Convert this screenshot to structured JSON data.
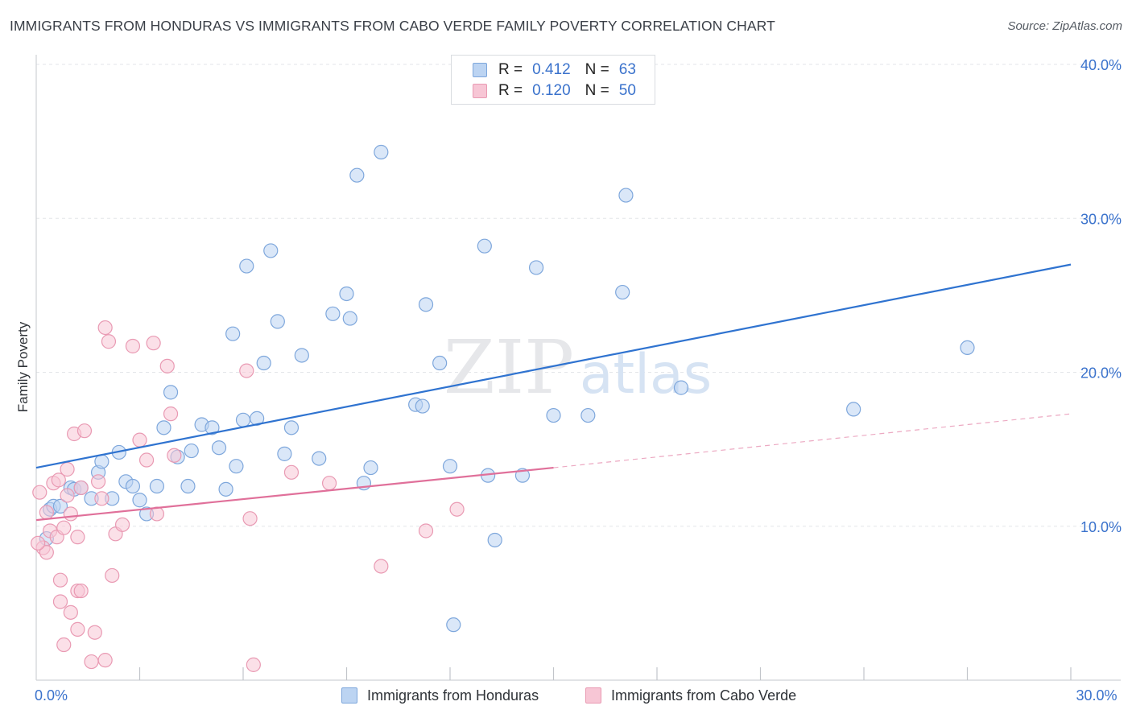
{
  "title": "IMMIGRANTS FROM HONDURAS VS IMMIGRANTS FROM CABO VERDE FAMILY POVERTY CORRELATION CHART",
  "source": "Source: ZipAtlas.com",
  "watermark": {
    "zip": "ZIP",
    "atlas": "atlas"
  },
  "colors": {
    "honduras_fill": "#bcd4f2",
    "honduras_stroke": "#7ea7dc",
    "honduras_line": "#2f73d0",
    "caboverde_fill": "#f7c6d5",
    "caboverde_stroke": "#e99ab3",
    "caboverde_line": "#e0709a",
    "tick_label": "#3a72cc",
    "grid": "#e3e5e8"
  },
  "legend": {
    "rows": [
      {
        "r_label": "R =",
        "r_value": "0.412",
        "n_label": "N =",
        "n_value": "63"
      },
      {
        "r_label": "R =",
        "r_value": "0.120",
        "n_label": "N =",
        "n_value": "50"
      }
    ]
  },
  "bottom_legend": {
    "series1": "Immigrants from Honduras",
    "series2": "Immigrants from Cabo Verde"
  },
  "chart_data": {
    "type": "scatter",
    "title": "IMMIGRANTS FROM HONDURAS VS IMMIGRANTS FROM CABO VERDE FAMILY POVERTY CORRELATION CHART",
    "xlabel": "",
    "ylabel": "Family Poverty",
    "xlim": [
      0,
      30
    ],
    "ylim": [
      0,
      40
    ],
    "x_tick_labels": [
      {
        "value": 0,
        "label": "0.0%"
      },
      {
        "value": 30,
        "label": "30.0%"
      }
    ],
    "x_minor_ticks": [
      3,
      6,
      9,
      12,
      15,
      18,
      21,
      24,
      27,
      30
    ],
    "y_ticks": [
      {
        "value": 10,
        "label": "10.0%"
      },
      {
        "value": 20,
        "label": "20.0%"
      },
      {
        "value": 30,
        "label": "30.0%"
      },
      {
        "value": 40,
        "label": "40.0%"
      }
    ],
    "grid": true,
    "series": [
      {
        "name": "Immigrants from Honduras",
        "r": 0.412,
        "n": 63,
        "trend": {
          "x": [
            0,
            30
          ],
          "y": [
            13.8,
            27.0
          ]
        },
        "points": [
          [
            0.3,
            9.2
          ],
          [
            0.4,
            11.1
          ],
          [
            0.5,
            11.3
          ],
          [
            0.7,
            11.3
          ],
          [
            1.0,
            12.5
          ],
          [
            1.1,
            12.4
          ],
          [
            1.3,
            12.5
          ],
          [
            1.6,
            11.8
          ],
          [
            1.8,
            13.5
          ],
          [
            1.9,
            14.2
          ],
          [
            2.2,
            11.8
          ],
          [
            2.4,
            14.8
          ],
          [
            2.6,
            12.9
          ],
          [
            2.8,
            12.6
          ],
          [
            3.0,
            11.7
          ],
          [
            3.2,
            10.8
          ],
          [
            3.5,
            12.6
          ],
          [
            3.7,
            16.4
          ],
          [
            3.9,
            18.7
          ],
          [
            4.1,
            14.5
          ],
          [
            4.4,
            12.6
          ],
          [
            4.5,
            14.9
          ],
          [
            4.8,
            16.6
          ],
          [
            5.1,
            16.4
          ],
          [
            5.3,
            15.1
          ],
          [
            5.5,
            12.4
          ],
          [
            5.7,
            22.5
          ],
          [
            5.8,
            13.9
          ],
          [
            6.0,
            16.9
          ],
          [
            6.1,
            26.9
          ],
          [
            6.4,
            17.0
          ],
          [
            6.6,
            20.6
          ],
          [
            6.8,
            27.9
          ],
          [
            7.0,
            23.3
          ],
          [
            7.2,
            14.7
          ],
          [
            7.4,
            16.4
          ],
          [
            7.7,
            21.1
          ],
          [
            8.2,
            14.4
          ],
          [
            8.6,
            23.8
          ],
          [
            9.0,
            25.1
          ],
          [
            9.1,
            23.5
          ],
          [
            9.3,
            32.8
          ],
          [
            9.5,
            12.8
          ],
          [
            9.7,
            13.8
          ],
          [
            10.0,
            34.3
          ],
          [
            11.0,
            17.9
          ],
          [
            11.2,
            17.8
          ],
          [
            11.3,
            24.4
          ],
          [
            11.7,
            20.6
          ],
          [
            12.0,
            13.9
          ],
          [
            12.1,
            3.6
          ],
          [
            13.0,
            28.2
          ],
          [
            13.1,
            13.3
          ],
          [
            13.3,
            9.1
          ],
          [
            14.1,
            13.3
          ],
          [
            14.5,
            26.8
          ],
          [
            15.0,
            17.2
          ],
          [
            16.0,
            17.2
          ],
          [
            17.0,
            25.2
          ],
          [
            17.1,
            31.5
          ],
          [
            18.7,
            19.0
          ],
          [
            23.7,
            17.6
          ],
          [
            27.0,
            21.6
          ]
        ]
      },
      {
        "name": "Immigrants from Cabo Verde",
        "r": 0.12,
        "n": 50,
        "trend": {
          "x": [
            0,
            15
          ],
          "y": [
            10.4,
            13.8
          ]
        },
        "trend_extension": {
          "x": [
            15,
            30
          ],
          "y": [
            13.8,
            17.3
          ]
        },
        "points": [
          [
            0.1,
            12.2
          ],
          [
            0.2,
            8.6
          ],
          [
            0.3,
            8.3
          ],
          [
            0.4,
            9.7
          ],
          [
            0.5,
            12.8
          ],
          [
            0.6,
            9.3
          ],
          [
            0.65,
            13.0
          ],
          [
            0.7,
            5.1
          ],
          [
            0.7,
            6.5
          ],
          [
            0.8,
            2.3
          ],
          [
            0.8,
            9.9
          ],
          [
            0.9,
            12.0
          ],
          [
            0.9,
            13.7
          ],
          [
            1.0,
            4.4
          ],
          [
            1.0,
            10.8
          ],
          [
            1.1,
            16.0
          ],
          [
            1.2,
            3.3
          ],
          [
            1.2,
            5.8
          ],
          [
            1.2,
            9.3
          ],
          [
            1.3,
            12.5
          ],
          [
            1.3,
            5.8
          ],
          [
            1.4,
            16.2
          ],
          [
            1.6,
            1.2
          ],
          [
            1.7,
            3.1
          ],
          [
            1.8,
            12.9
          ],
          [
            1.9,
            11.8
          ],
          [
            2.0,
            1.3
          ],
          [
            2.0,
            22.9
          ],
          [
            2.1,
            22.0
          ],
          [
            2.2,
            6.8
          ],
          [
            2.3,
            9.5
          ],
          [
            2.5,
            10.1
          ],
          [
            2.8,
            21.7
          ],
          [
            3.0,
            15.6
          ],
          [
            3.2,
            14.3
          ],
          [
            3.4,
            21.9
          ],
          [
            3.5,
            10.8
          ],
          [
            3.8,
            20.4
          ],
          [
            3.9,
            17.3
          ],
          [
            4.0,
            14.6
          ],
          [
            6.1,
            20.1
          ],
          [
            6.2,
            10.5
          ],
          [
            6.3,
            1.0
          ],
          [
            7.4,
            13.5
          ],
          [
            8.5,
            12.8
          ],
          [
            10.0,
            7.4
          ],
          [
            11.3,
            9.7
          ],
          [
            12.2,
            11.1
          ],
          [
            0.05,
            8.9
          ],
          [
            0.3,
            10.9
          ]
        ]
      }
    ]
  }
}
